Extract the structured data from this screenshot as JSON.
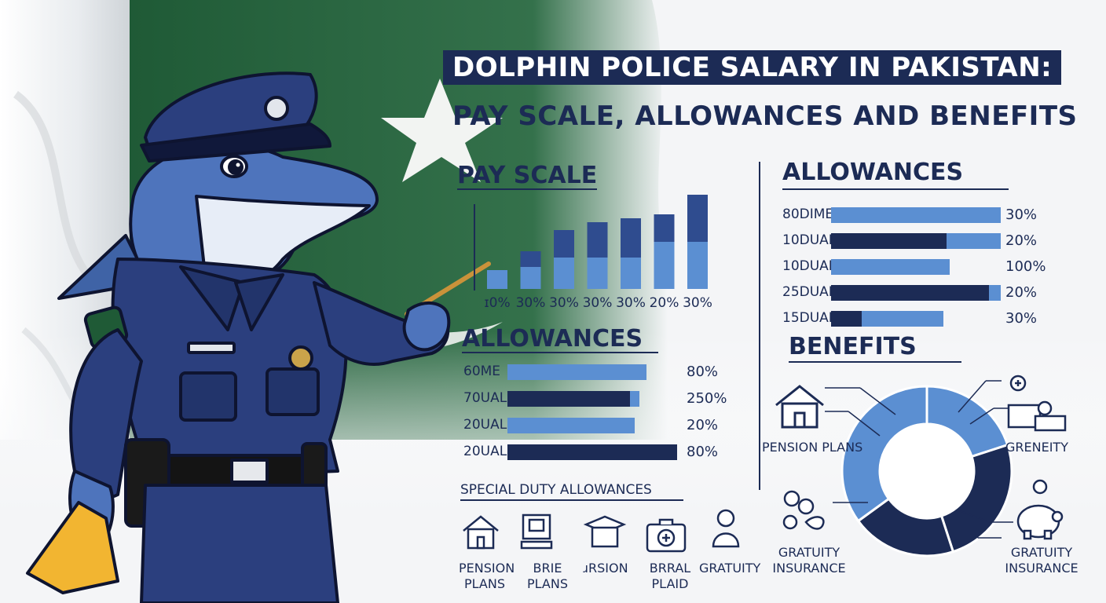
{
  "title": {
    "line1": "DOLPHIN POLICE SALARY IN PAKISTAN:",
    "line2": "PAY SCALE, ALLOWANCES AND BENEFITS"
  },
  "colors": {
    "navy": "#1c2b55",
    "blue": "#5b8fd2",
    "flag_green": "#1f5a36"
  },
  "chart_data": [
    {
      "type": "bar",
      "title": "PAY SCALE",
      "categories": [
        "ɪ0%",
        "30%",
        "30%",
        "30%",
        "30%",
        "20%",
        "30%"
      ],
      "series": [
        {
          "values": [
            24,
            28,
            40,
            40,
            40,
            60,
            60
          ]
        },
        {
          "values": [
            0,
            20,
            35,
            45,
            50,
            35,
            60
          ]
        }
      ],
      "ylim": [
        0,
        140
      ],
      "grid": false
    },
    {
      "type": "bar",
      "orientation": "horizontal",
      "title": "ALLOWANCES",
      "rows": [
        {
          "label": "80DIME",
          "dark": 0,
          "light": 100,
          "value": "30%"
        },
        {
          "label": "10DUAL",
          "dark": 68,
          "light": 32,
          "value": "20%"
        },
        {
          "label": "10DUAL",
          "dark": 0,
          "light": 70,
          "value": "100%"
        },
        {
          "label": "25DUAL",
          "dark": 93,
          "light": 7,
          "value": "20%"
        },
        {
          "label": "15DUAL",
          "dark": 18,
          "light": 48,
          "value": "30%"
        }
      ]
    },
    {
      "type": "bar",
      "orientation": "horizontal",
      "title": "ALLOWANCES",
      "rows": [
        {
          "label": "60ME",
          "dark": 0,
          "light": 82,
          "value": "80%"
        },
        {
          "label": "70UAL",
          "dark": 72,
          "light": 6,
          "value": "250%"
        },
        {
          "label": "20UAL",
          "dark": 0,
          "light": 75,
          "value": "20%"
        },
        {
          "label": "20UAL",
          "dark": 100,
          "light": 0,
          "value": "80%"
        }
      ]
    },
    {
      "type": "pie",
      "title": "BENEFITS",
      "slices": [
        {
          "label": "PENSION PLANS",
          "value": 20,
          "color": "#5b8fd2"
        },
        {
          "label": "GRENEITY",
          "value": 25,
          "color": "#1c2b55"
        },
        {
          "label": "GRATUITY INSURANCE",
          "value": 20,
          "color": "#1c2b55"
        },
        {
          "label": "GRATUITY INSURANCE",
          "value": 35,
          "color": "#5b8fd2"
        }
      ]
    }
  ],
  "special_duty": {
    "title": "SPECIAL DUTY ALLOWANCES",
    "items": [
      {
        "label1": "PENSION",
        "label2": "PLANS",
        "icon": "house-icon"
      },
      {
        "label1": "BRIE",
        "label2": "PLANS",
        "icon": "computer-icon"
      },
      {
        "label1": "ɹRSION",
        "label2": "",
        "icon": "graduation-icon"
      },
      {
        "label1": "BRRAL",
        "label2": "PLAID",
        "icon": "medical-kit-icon"
      },
      {
        "label1": "GRATUITY",
        "label2": "",
        "icon": "person-icon"
      }
    ]
  },
  "benefit_icons": [
    "house-icon",
    "family-icon",
    "medical-icon",
    "piggy-bank-icon"
  ]
}
